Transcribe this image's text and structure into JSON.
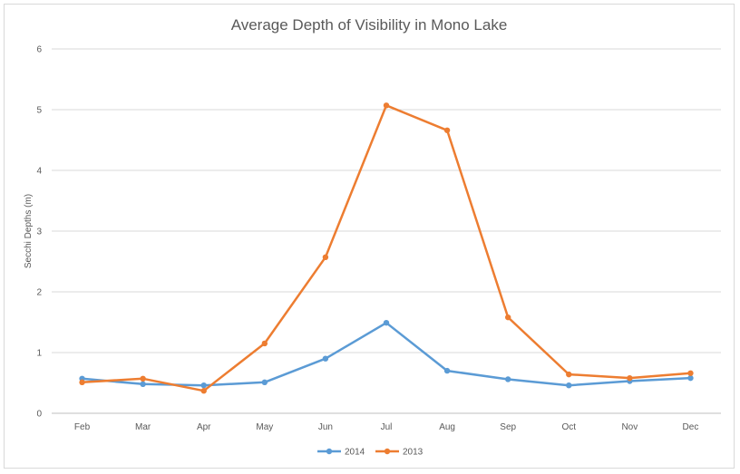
{
  "chart_data": {
    "type": "line",
    "title": "Average Depth of Visibility in Mono Lake",
    "xlabel": "",
    "ylabel": "Secchi Depths (m)",
    "categories": [
      "Feb",
      "Mar",
      "Apr",
      "May",
      "Jun",
      "Jul",
      "Aug",
      "Sep",
      "Oct",
      "Nov",
      "Dec"
    ],
    "ylim": [
      0,
      6
    ],
    "yticks": [
      "0",
      "1",
      "2",
      "3",
      "4",
      "5",
      "6"
    ],
    "grid": true,
    "legend_position": "bottom",
    "series": [
      {
        "name": "2014",
        "color": "#5b9bd5",
        "values": [
          0.57,
          0.48,
          0.46,
          0.51,
          0.9,
          1.49,
          0.7,
          0.56,
          0.46,
          0.53,
          0.58
        ]
      },
      {
        "name": "2013",
        "color": "#ed7d31",
        "values": [
          0.51,
          0.57,
          0.37,
          1.15,
          2.57,
          5.07,
          4.66,
          1.58,
          0.64,
          0.58,
          0.66
        ]
      }
    ]
  }
}
